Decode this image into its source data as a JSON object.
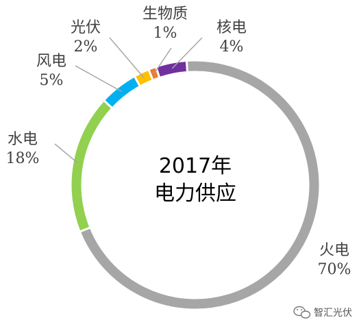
{
  "chart_data": {
    "type": "pie",
    "variant": "donut",
    "title_lines": [
      "2017年",
      "电力供应"
    ],
    "slices": [
      {
        "name": "火电",
        "value": 70,
        "percent_label": "70%",
        "color": "#a6a6a6"
      },
      {
        "name": "水电",
        "value": 18,
        "percent_label": "18%",
        "color": "#92d050"
      },
      {
        "name": "风电",
        "value": 5,
        "percent_label": "5%",
        "color": "#00b0f0"
      },
      {
        "name": "光伏",
        "value": 2,
        "percent_label": "2%",
        "color": "#ffc000"
      },
      {
        "name": "生物质",
        "value": 1,
        "percent_label": "1%",
        "color": "#ed7d31"
      },
      {
        "name": "核电",
        "value": 4,
        "percent_label": "4%",
        "color": "#7030a0"
      }
    ]
  },
  "watermark": {
    "text": "智汇光伏",
    "icon": "wechat-icon"
  }
}
